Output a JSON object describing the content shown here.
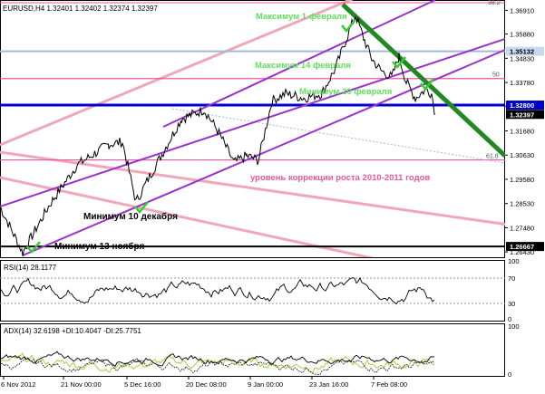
{
  "header": {
    "symbol_line": "EURUSD,H4  1.32401 1.32402 1.32374 1.32397",
    "top_right_level": "38.2"
  },
  "price_axis": {
    "ticks": [
      "1.36910",
      "1.35880",
      "1.34830",
      "1.33780",
      "1.32750",
      "1.31680",
      "1.30630",
      "1.29580",
      "1.28530",
      "1.27480",
      "1.26430"
    ],
    "badges": [
      {
        "label": "1.35132",
        "value": 1.35132,
        "bg": "#c8d8ef",
        "fg": "#000000"
      },
      {
        "label": "1.32800",
        "value": 1.328,
        "bg": "#0000cc",
        "fg": "#ffffff"
      },
      {
        "label": "1.32397",
        "value": 1.32397,
        "bg": "#000000",
        "fg": "#ffffff"
      },
      {
        "label": "1.26667",
        "value": 1.26667,
        "bg": "#000000",
        "fg": "#ffffff"
      }
    ]
  },
  "fib_labels": [
    {
      "label": "50",
      "value": 1.3395
    },
    {
      "label": "61.8",
      "value": 1.3042
    }
  ],
  "annotations": [
    {
      "text": "Максимум 1 февраля",
      "color": "#5fe05f"
    },
    {
      "text": "Максимум 14 февраля",
      "color": "#5fe05f"
    },
    {
      "text": "Минимум 20 февраля",
      "color": "#5fe05f"
    },
    {
      "text": "уровень коррекции роста 2010-2011 годов",
      "color": "#ee55a0"
    },
    {
      "text": "Минимум 10 декабря",
      "color": "#000000"
    },
    {
      "text": "Минимум 13 ноября",
      "color": "#000000"
    }
  ],
  "rsi": {
    "label": "RSI(14) 28.1177",
    "ticks": [
      "100",
      "70",
      "30",
      "0"
    ],
    "levels": [
      70,
      30
    ]
  },
  "adx": {
    "label": "ADX(14) 32.6198 +DI:10.4047 -DI:25.7751",
    "ticks": [
      "100",
      "0"
    ]
  },
  "time_axis": {
    "ticks": [
      "6 Nov 2012",
      "21 Nov 00:00",
      "5 Dec 16:00",
      "20 Dec 08:00",
      "9 Jan 00:00",
      "23 Jan 16:00",
      "7 Feb 08:00"
    ]
  },
  "chart_data": {
    "type": "line",
    "title": "EURUSD,H4",
    "series": [
      {
        "name": "EURUSD,H4",
        "anchors": [
          [
            0,
            1.284
          ],
          [
            25,
            1.264
          ],
          [
            55,
            1.285
          ],
          [
            85,
            1.302
          ],
          [
            120,
            1.311
          ],
          [
            135,
            1.312
          ],
          [
            150,
            1.286
          ],
          [
            165,
            1.297
          ],
          [
            200,
            1.322
          ],
          [
            225,
            1.326
          ],
          [
            240,
            1.317
          ],
          [
            258,
            1.303
          ],
          [
            272,
            1.306
          ],
          [
            285,
            1.304
          ],
          [
            300,
            1.33
          ],
          [
            315,
            1.333
          ],
          [
            335,
            1.331
          ],
          [
            355,
            1.333
          ],
          [
            370,
            1.344
          ],
          [
            385,
            1.36
          ],
          [
            392,
            1.367
          ],
          [
            402,
            1.356
          ],
          [
            410,
            1.348
          ],
          [
            420,
            1.343
          ],
          [
            432,
            1.34
          ],
          [
            440,
            1.349
          ],
          [
            448,
            1.338
          ],
          [
            458,
            1.331
          ],
          [
            470,
            1.335
          ],
          [
            476,
            1.333
          ],
          [
            480,
            1.324
          ]
        ]
      }
    ],
    "price_range": [
      1.262,
      1.372
    ],
    "horizontal_levels": [
      1.35132,
      1.3395,
      1.328,
      1.3042,
      1.26667
    ],
    "colors": {
      "channel": "#9933cc",
      "trend": "#228822",
      "pink": "#f0a8b8",
      "level": "#ee55a0",
      "blue": "#0000cc"
    }
  }
}
